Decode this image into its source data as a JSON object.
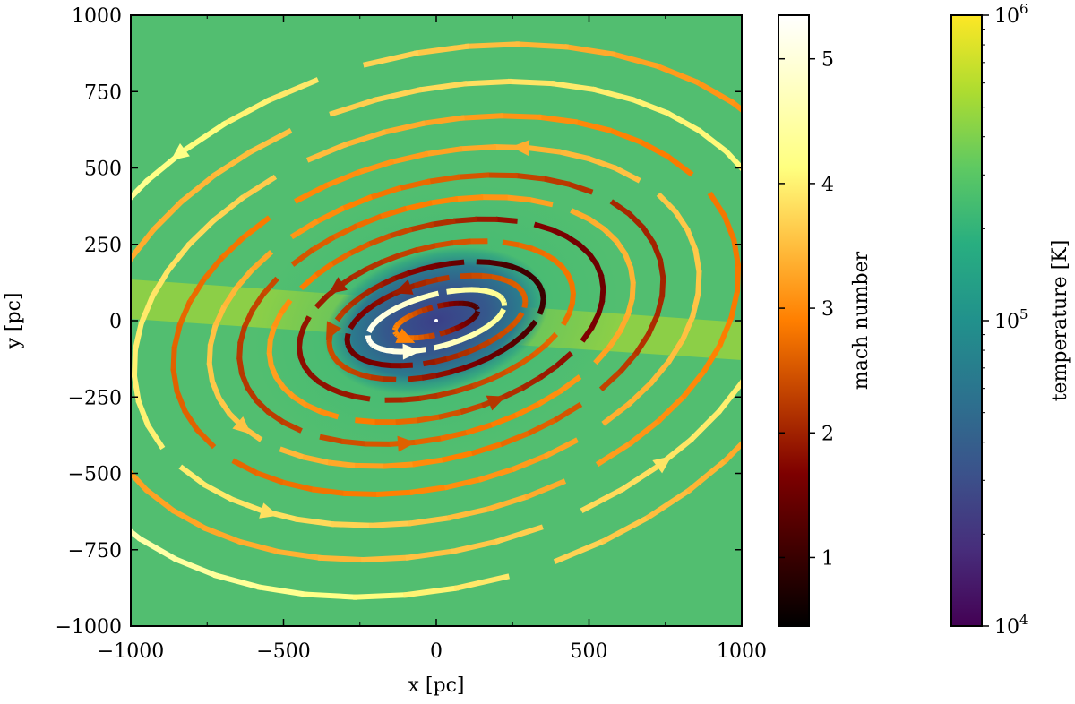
{
  "chart_data": {
    "type": "heatmap",
    "xlabel": "x [pc]",
    "ylabel": "y [pc]",
    "xlim": [
      -1000,
      1000
    ],
    "ylim": [
      -1000,
      1000
    ],
    "xticks": [
      -1000,
      -500,
      0,
      500,
      1000
    ],
    "yticks": [
      -1000,
      -750,
      -500,
      -250,
      0,
      250,
      500,
      750,
      1000
    ],
    "xtick_labels": [
      "−1000",
      "−500",
      "0",
      "500",
      "1000"
    ],
    "ytick_labels": [
      "−1000",
      "−750",
      "−500",
      "−250",
      "0",
      "250",
      "500",
      "750",
      "1000"
    ],
    "background_field": {
      "quantity": "temperature",
      "colormap": "viridis",
      "scale": "log",
      "disk_inclination_deg": 15,
      "ambient_log_T": 5.7,
      "hot_band_log_T": 5.88,
      "core_log_T": 4.7
    },
    "streamlines": {
      "quantity": "mach number",
      "colormap": "afmhot",
      "rotation": "counter-clockwise",
      "rings": [
        {
          "a": 140,
          "b": 45,
          "mach": [
            1.2,
            3.0
          ],
          "arrow_angle_deg": 200
        },
        {
          "a": 230,
          "b": 85,
          "mach": [
            4.3,
            5.2
          ],
          "arrow_angle_deg": 235
        },
        {
          "a": 300,
          "b": 130,
          "mach": [
            2.6,
            1.5
          ],
          "arrow_angle_deg": 100
        },
        {
          "a": 360,
          "b": 175,
          "mach": [
            1.0,
            2.4
          ],
          "arrow_angle_deg": 155
        },
        {
          "a": 460,
          "b": 240,
          "mach": [
            2.8,
            1.8
          ],
          "arrow_angle_deg": 125
        },
        {
          "a": 560,
          "b": 310,
          "mach": [
            1.5,
            3.2
          ],
          "arrow_angle_deg": 280
        },
        {
          "a": 660,
          "b": 380,
          "mach": [
            3.4,
            2.2
          ],
          "arrow_angle_deg": 250
        },
        {
          "a": 760,
          "b": 450,
          "mach": [
            2.0,
            3.6
          ],
          "arrow_angle_deg": 200
        },
        {
          "a": 880,
          "b": 540,
          "mach": [
            3.6,
            2.6
          ],
          "arrow_angle_deg": 60
        },
        {
          "a": 1010,
          "b": 640,
          "mach": [
            2.8,
            4.0
          ],
          "arrow_angle_deg": 225
        },
        {
          "a": 1150,
          "b": 750,
          "mach": [
            4.1,
            3.2
          ],
          "arrow_angle_deg": 300
        },
        {
          "a": 1300,
          "b": 870,
          "mach": [
            3.0,
            4.6
          ],
          "arrow_angle_deg": 120
        }
      ]
    },
    "colorbars": [
      {
        "label": "mach number",
        "colormap": "afmhot",
        "range": [
          0.45,
          5.35
        ],
        "ticks": [
          1,
          2,
          3,
          4,
          5
        ],
        "tick_labels": [
          "1",
          "2",
          "3",
          "4",
          "5"
        ]
      },
      {
        "label": "temperature [K]",
        "colormap": "viridis",
        "scale": "log",
        "range": [
          10000,
          1000000
        ],
        "ticks": [
          10000,
          100000,
          1000000
        ],
        "tick_labels": [
          {
            "base": "10",
            "exp": "4"
          },
          {
            "base": "10",
            "exp": "5"
          },
          {
            "base": "10",
            "exp": "6"
          }
        ]
      }
    ]
  }
}
